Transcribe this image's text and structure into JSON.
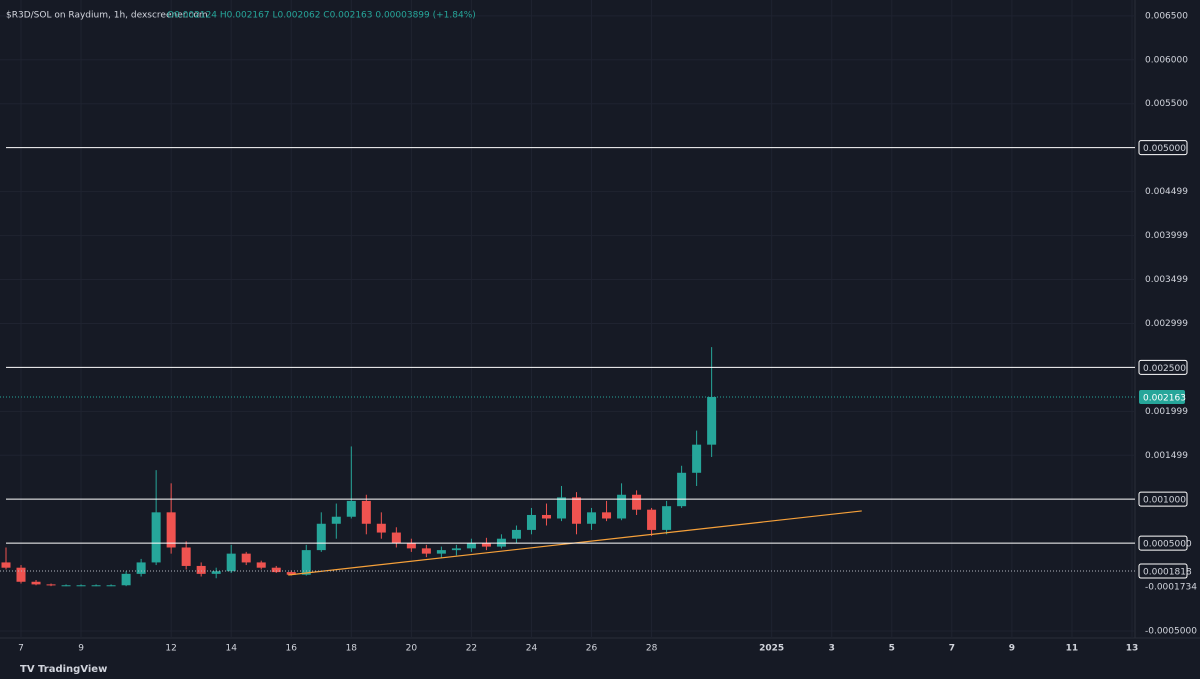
{
  "chart_data": {
    "type": "candlestick",
    "title": "$R3D/SOL on Raydium, 1h, dexscreener.com",
    "ohlc_text": "O0.002124 H0.002167 L0.002062 C0.002163 0.00003899 (+1.84%)",
    "source": "TradingView",
    "x": [
      6.5,
      7,
      7.5,
      8,
      8.5,
      9,
      9.5,
      10,
      10.5,
      11,
      11.5,
      12,
      12.5,
      13,
      13.5,
      14,
      14.5,
      15,
      15.5,
      16,
      16.5,
      17,
      17.5,
      18,
      18.5,
      19,
      19.5,
      20,
      20.5,
      21,
      21.5,
      22,
      22.5,
      23,
      23.5,
      24,
      24.5,
      25,
      25.5,
      26,
      26.5,
      27,
      27.5,
      28,
      28.5,
      29,
      29.5,
      30
    ],
    "open": [
      0.00028,
      0.00022,
      6e-05,
      3e-05,
      2e-05,
      2e-05,
      2e-05,
      2e-05,
      2e-05,
      0.00015,
      0.00028,
      0.00085,
      0.00045,
      0.00024,
      0.00015,
      0.00018,
      0.00038,
      0.00028,
      0.00022,
      0.00017,
      0.00014,
      0.00042,
      0.00072,
      0.0008,
      0.00098,
      0.00072,
      0.00062,
      0.0005,
      0.00044,
      0.00038,
      0.00042,
      0.00044,
      0.0005,
      0.00046,
      0.00055,
      0.00065,
      0.00082,
      0.00078,
      0.00102,
      0.00072,
      0.00085,
      0.00078,
      0.00105,
      0.00088,
      0.00065,
      0.00092,
      0.0013,
      0.00162
    ],
    "high": [
      0.00045,
      0.00025,
      8e-05,
      4e-05,
      3e-05,
      3e-05,
      3e-05,
      3e-05,
      0.00018,
      0.00032,
      0.00133,
      0.00118,
      0.00052,
      0.00028,
      0.00022,
      0.00048,
      0.0004,
      0.0003,
      0.00024,
      0.00019,
      0.00048,
      0.00085,
      0.00095,
      0.0016,
      0.00105,
      0.00085,
      0.00068,
      0.00055,
      0.00048,
      0.00046,
      0.00048,
      0.00055,
      0.00056,
      0.0006,
      0.0007,
      0.0009,
      0.00095,
      0.00115,
      0.00108,
      0.0009,
      0.00098,
      0.00118,
      0.0011,
      0.0009,
      0.00098,
      0.00138,
      0.00178,
      0.00273
    ],
    "low": [
      0.0002,
      4e-05,
      2e-05,
      1e-05,
      1e-05,
      1e-05,
      1e-05,
      1e-05,
      1e-05,
      0.00012,
      0.00025,
      0.00038,
      0.0002,
      0.00012,
      0.0001,
      0.00016,
      0.00025,
      0.0002,
      0.00016,
      0.00013,
      0.00013,
      0.0004,
      0.00055,
      0.00078,
      0.0006,
      0.00055,
      0.00045,
      0.0004,
      0.00034,
      0.00033,
      0.00036,
      0.0004,
      0.00042,
      0.00044,
      0.0005,
      0.0006,
      0.0007,
      0.00075,
      0.0006,
      0.00065,
      0.00075,
      0.00076,
      0.00082,
      0.00058,
      0.0006,
      0.0009,
      0.00115,
      0.00148
    ],
    "close": [
      0.00022,
      6e-05,
      3e-05,
      2e-05,
      2e-05,
      2e-05,
      2e-05,
      2e-05,
      0.00015,
      0.00028,
      0.00085,
      0.00045,
      0.00024,
      0.00015,
      0.00018,
      0.00038,
      0.00028,
      0.00022,
      0.00017,
      0.00014,
      0.00042,
      0.00072,
      0.0008,
      0.00098,
      0.00072,
      0.00062,
      0.0005,
      0.00044,
      0.00038,
      0.00042,
      0.00044,
      0.0005,
      0.00046,
      0.00055,
      0.00065,
      0.00082,
      0.00078,
      0.00102,
      0.00072,
      0.00085,
      0.00078,
      0.00105,
      0.00088,
      0.00065,
      0.00092,
      0.0013,
      0.00162,
      0.002163
    ],
    "up_color": "#26a69a",
    "down_color": "#ef5350",
    "xlim": [
      6.3,
      44.1
    ],
    "ylim": [
      -0.00058,
      0.00668
    ],
    "xticks": [
      7,
      9,
      12,
      14,
      16,
      18,
      20,
      22,
      24,
      26,
      28,
      {
        "value": 32,
        "label": "2025"
      },
      {
        "value": 34,
        "label": "3"
      },
      {
        "value": 36,
        "label": "5"
      },
      {
        "value": 38,
        "label": "7"
      },
      {
        "value": 40,
        "label": "9"
      },
      {
        "value": 42,
        "label": "11"
      },
      {
        "value": 44,
        "label": "13"
      }
    ],
    "yticks": [
      {
        "value": 0.0065,
        "label": "0.006500"
      },
      {
        "value": 0.006,
        "label": "0.006000"
      },
      {
        "value": 0.0055,
        "label": "0.005500"
      },
      0.004499,
      0.003999,
      0.003499,
      0.002999,
      0.001999,
      0.001499,
      {
        "value": -0.0005,
        "label": "-0.0005000"
      }
    ],
    "grid": true,
    "levels": [
      {
        "value": 0.005,
        "label": "0.005000"
      },
      {
        "value": 0.0025,
        "label": "0.002500"
      },
      {
        "value": 0.001,
        "label": "0.001000"
      },
      {
        "value": 0.0005,
        "label": "0.0005000"
      }
    ],
    "level_color": "#ffffff",
    "last_price": 0.002163,
    "reference_price": 0.0001818,
    "low_label": "-0.0001734",
    "trendline": {
      "x": [
        15.9,
        35.0
      ],
      "values": [
        0.000137,
        0.000866
      ],
      "color": "#f7a13a"
    }
  }
}
